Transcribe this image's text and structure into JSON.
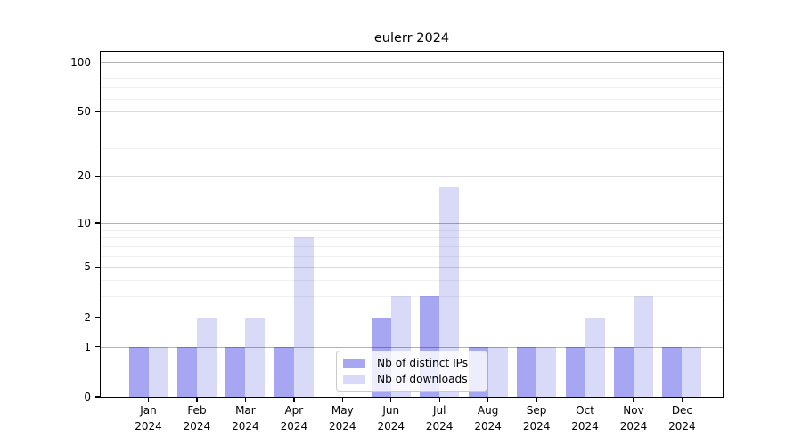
{
  "chart_data": {
    "type": "bar",
    "title": "eulerr 2024",
    "categories": [
      "Jan",
      "Feb",
      "Mar",
      "Apr",
      "May",
      "Jun",
      "Jul",
      "Aug",
      "Sep",
      "Oct",
      "Nov",
      "Dec"
    ],
    "year": "2024",
    "series": [
      {
        "name": "Nb of distinct IPs",
        "color": "#a6a6f2",
        "values": [
          1,
          1,
          1,
          1,
          0,
          2,
          3,
          1,
          1,
          1,
          1,
          1
        ]
      },
      {
        "name": "Nb of downloads",
        "color": "#d9d9f8",
        "values": [
          1,
          2,
          2,
          8,
          0,
          3,
          17,
          1,
          1,
          2,
          3,
          1
        ]
      }
    ],
    "y_axis": {
      "scale": "log10(1+v)",
      "ticks": [
        100,
        50,
        20,
        10,
        5,
        2,
        1,
        0
      ],
      "decade_gridlines": [
        1,
        10,
        100
      ],
      "light_gridlines": [
        2,
        5,
        20,
        50
      ],
      "minor_gridlines": [
        3,
        4,
        6,
        7,
        8,
        9,
        30,
        40,
        60,
        70,
        80,
        90
      ],
      "ylim": [
        0,
        116
      ]
    },
    "legend_position": "lower center",
    "grid": "on",
    "colors": {
      "axis": "#000000",
      "grid_decade": "rgba(0,0,0,0.30)",
      "grid_major": "rgba(0,0,0,0.14)",
      "grid_minor": "rgba(0,0,0,0.06)",
      "background": "#ffffff"
    }
  }
}
